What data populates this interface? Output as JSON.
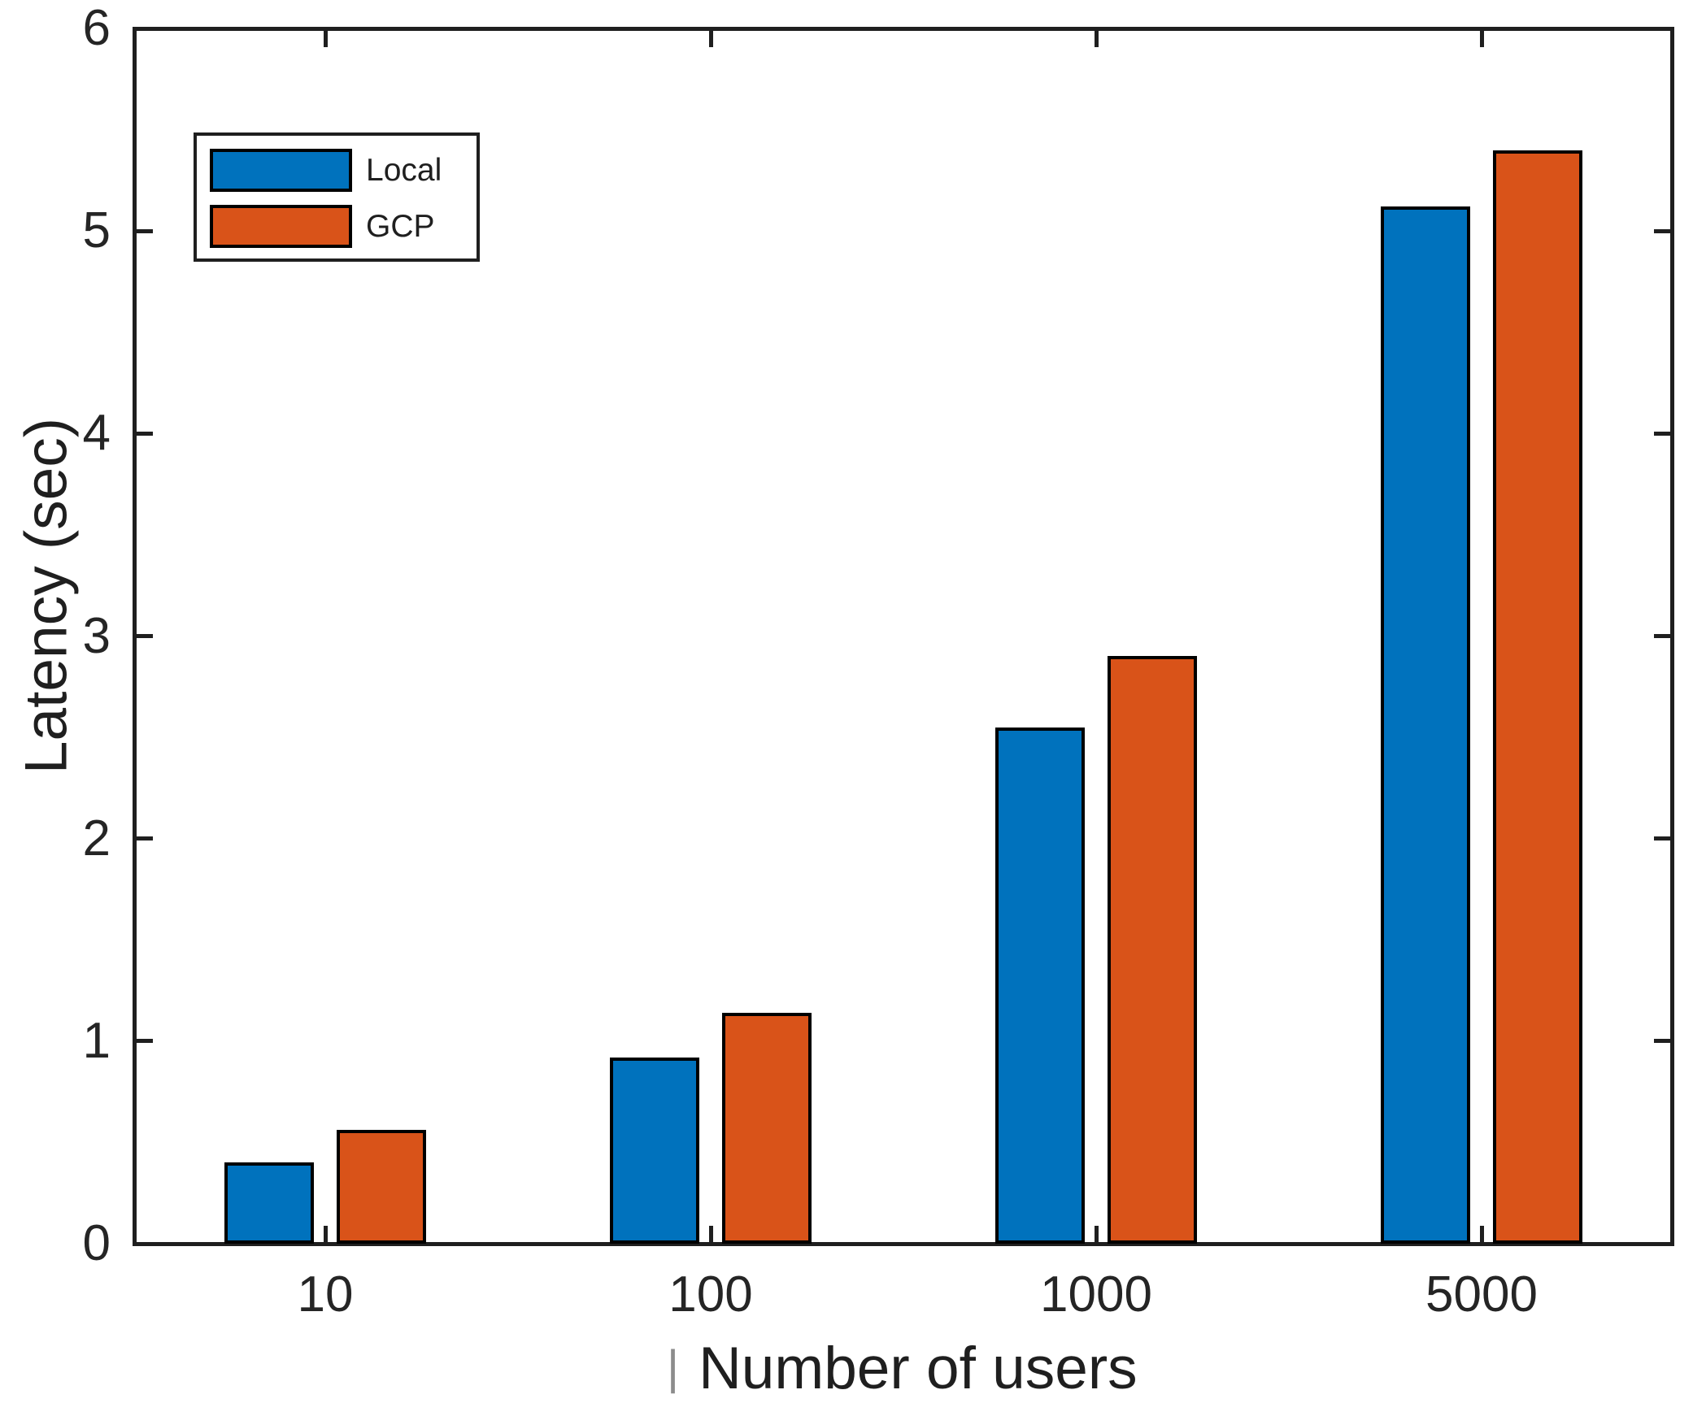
{
  "chart_data": {
    "type": "bar",
    "title": "",
    "categories": [
      "10",
      "100",
      "1000",
      "5000"
    ],
    "series": [
      {
        "name": "Local",
        "color": "#0072BD",
        "values": [
          0.4,
          0.92,
          2.55,
          5.12
        ]
      },
      {
        "name": "GCP",
        "color": "#D95319",
        "values": [
          0.56,
          1.14,
          2.9,
          5.4
        ]
      }
    ],
    "xlabel": "Number of users",
    "xlabel_cursor_mark": "|",
    "ylabel": "Latency (sec)",
    "ylim": [
      0,
      6
    ],
    "yticks": [
      0,
      1,
      2,
      3,
      4,
      5,
      6
    ],
    "grid": false,
    "legend": {
      "position": "top-left",
      "entries": [
        "Local",
        "GCP"
      ]
    },
    "axis_color": "#1f1f1f",
    "text_color": "#252525",
    "bar_edge_color": "#000000"
  }
}
